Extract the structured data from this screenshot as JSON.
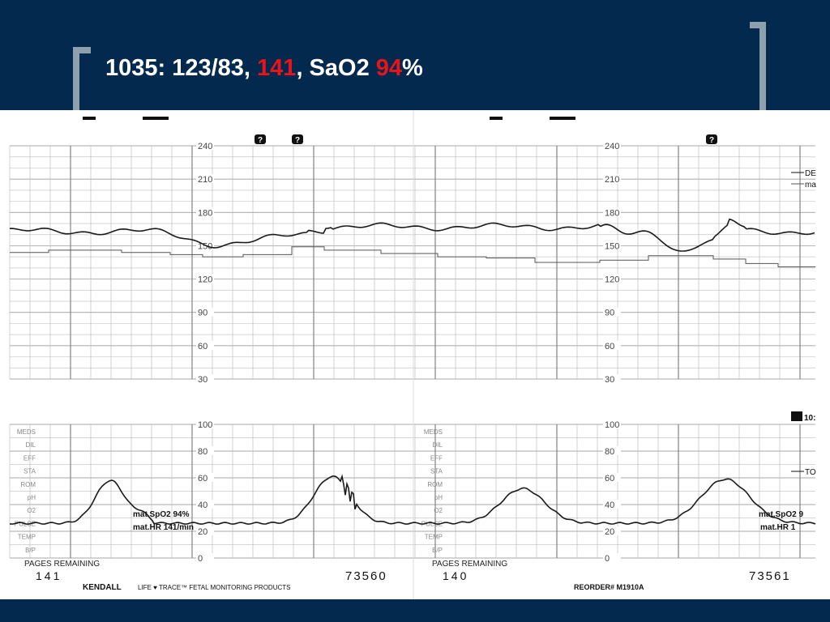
{
  "slide": {
    "title_prefix": "1035: 123/83, ",
    "title_hr": "141",
    "title_mid": ", SaO2 ",
    "title_spo2": "94",
    "title_suffix": "%"
  },
  "colors": {
    "background_bar": "#03294f",
    "bracket": "#8ea0ac",
    "highlight": "#e8141b",
    "trace_ink": "#1a1a1a",
    "grid": "#9a9a9a"
  },
  "strip": {
    "fhr_scale": [
      "240",
      "210",
      "180",
      "150",
      "120",
      "90",
      "60",
      "30"
    ],
    "uc_scale": [
      "100",
      "80",
      "60",
      "40",
      "20",
      "0"
    ],
    "event_labels": [
      "MEDS",
      "DIL",
      "EFF",
      "STA",
      "ROM",
      "pH",
      "O2",
      "PULSE",
      "TEMP",
      "B/P"
    ],
    "legend_top": [
      "DE",
      "ma"
    ],
    "legend_uc_right": [
      "10:",
      "TO"
    ],
    "annotation_left": {
      "spo2": "mat.SpO2  94%",
      "hr": "mat.HR  141/min"
    },
    "annotation_right": {
      "spo2": "mat.SpO2  9",
      "hr": "mat.HR  1"
    },
    "pages_remaining_label": "PAGES REMAINING",
    "pages_left": "141",
    "pages_right": "140",
    "serial_left": "73560",
    "serial_right": "73561",
    "brand": "KENDALL",
    "product": "LIFE ♥ TRACE™ FETAL MONITORING PRODUCTS",
    "reorder": "REORDER# M1910A",
    "marker_icon": "question-marker-icon"
  }
}
